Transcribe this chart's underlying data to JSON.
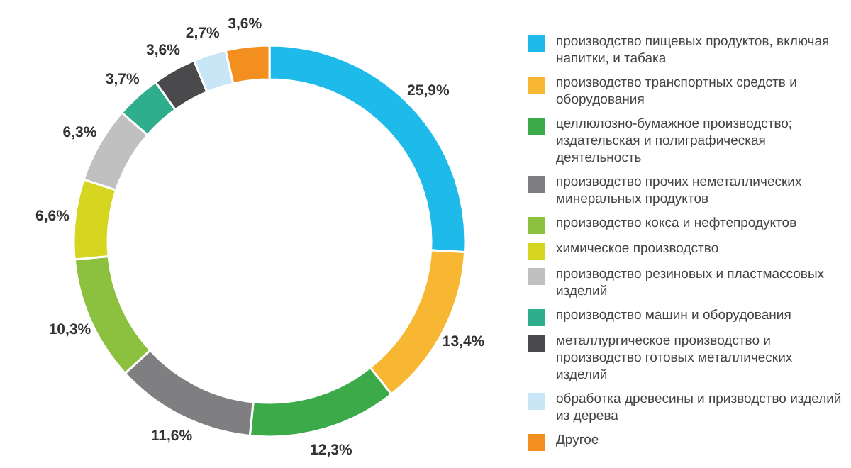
{
  "chart_data": {
    "type": "donut",
    "legend": "right",
    "categories": [
      "производство пищевых продуктов, включая напитки, и табака",
      "производство транспортных средств и оборудования",
      "целлюлозно-бумажное производство; издательская и полиграфическая деятельность",
      "производство прочих неметаллических минеральных продуктов",
      "производство кокса и нефтепродуктов",
      "химическое производство",
      "производство резиновых и пластмассовых изделий",
      "производство машин и оборудования",
      "металлургическое производство и производство готовых металлических изделий",
      "обработка древесины и призводство изделий из дерева",
      "Другое"
    ],
    "values": [
      25.9,
      13.4,
      12.3,
      11.6,
      10.3,
      6.6,
      6.3,
      3.7,
      3.6,
      2.7,
      3.6
    ],
    "value_labels": [
      "25,9%",
      "13,4%",
      "12,3%",
      "11,6%",
      "10,3%",
      "6,6%",
      "6,3%",
      "3,7%",
      "3,6%",
      "2,7%",
      "3,6%"
    ],
    "colors": [
      "#1ebbea",
      "#f7b733",
      "#3daa4a",
      "#7f7f81",
      "#8cc03f",
      "#d6d520",
      "#c0c0c0",
      "#2fae8e",
      "#4a4a4c",
      "#c9e6f7",
      "#f28f1f"
    ]
  }
}
